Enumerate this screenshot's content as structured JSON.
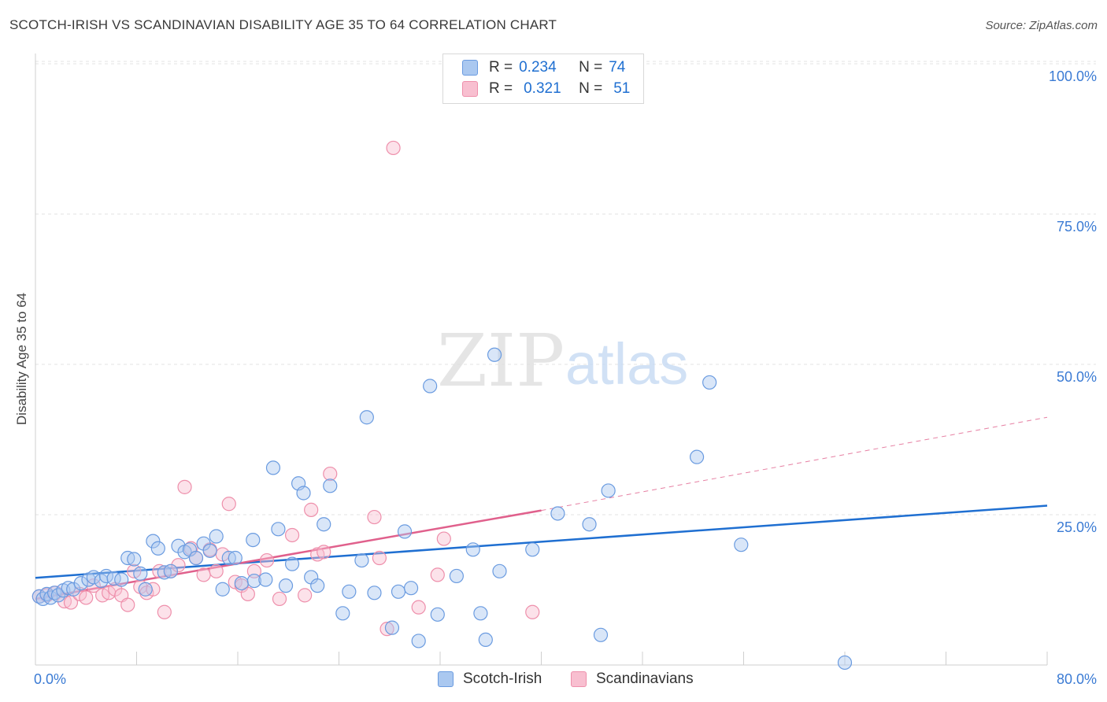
{
  "header": {
    "title": "SCOTCH-IRISH VS SCANDINAVIAN DISABILITY AGE 35 TO 64 CORRELATION CHART",
    "source": "Source: ZipAtlas.com"
  },
  "watermark": {
    "zip": "ZIP",
    "atlas": "atlas"
  },
  "legend": {
    "rows": [
      {
        "r_label": "R =",
        "r_value": "0.234",
        "n_label": "N =",
        "n_value": "74"
      },
      {
        "r_label": "R =",
        "r_value": "0.321",
        "n_label": "N =",
        "n_value": "51"
      }
    ]
  },
  "colors": {
    "blue_fill": "#aac8f0",
    "blue_stroke": "#6a9be0",
    "blue_line": "#1f6fd1",
    "pink_fill": "#f8bfd0",
    "pink_stroke": "#ee8fab",
    "pink_line": "#e0608c",
    "tick_label": "#3b7bd4",
    "grid": "#e3e3e3"
  },
  "chart_data": {
    "type": "scatter",
    "title": "SCOTCH-IRISH VS SCANDINAVIAN DISABILITY AGE 35 TO 64 CORRELATION CHART",
    "xlabel": "",
    "ylabel": "Disability Age 35 to 64",
    "xlim": [
      0,
      80
    ],
    "ylim": [
      0,
      102
    ],
    "x_tick_labels": [
      "0.0%",
      "80.0%"
    ],
    "y_ticks": [
      25,
      50,
      75,
      100
    ],
    "y_tick_labels": [
      "25.0%",
      "50.0%",
      "75.0%",
      "100.0%"
    ],
    "grid": true,
    "legend_position": "top-center",
    "series": [
      {
        "name": "Scotch-Irish",
        "r": 0.234,
        "n": 74,
        "trend": {
          "x": [
            0,
            80
          ],
          "y": [
            14.5,
            26.5
          ]
        },
        "points": [
          [
            0.3,
            11.4
          ],
          [
            0.6,
            11.0
          ],
          [
            0.9,
            11.8
          ],
          [
            1.2,
            11.2
          ],
          [
            1.5,
            12.0
          ],
          [
            1.8,
            11.6
          ],
          [
            2.2,
            12.4
          ],
          [
            2.6,
            12.8
          ],
          [
            3.0,
            12.6
          ],
          [
            3.6,
            13.6
          ],
          [
            4.2,
            14.2
          ],
          [
            4.6,
            14.6
          ],
          [
            5.2,
            14.0
          ],
          [
            5.6,
            14.8
          ],
          [
            6.2,
            14.4
          ],
          [
            6.8,
            14.2
          ],
          [
            7.3,
            17.8
          ],
          [
            7.8,
            17.6
          ],
          [
            8.3,
            15.2
          ],
          [
            8.7,
            12.6
          ],
          [
            9.3,
            20.6
          ],
          [
            9.7,
            19.4
          ],
          [
            10.2,
            15.4
          ],
          [
            10.7,
            15.6
          ],
          [
            11.3,
            19.8
          ],
          [
            11.8,
            18.8
          ],
          [
            12.2,
            19.2
          ],
          [
            12.7,
            17.8
          ],
          [
            13.3,
            20.2
          ],
          [
            13.8,
            19.0
          ],
          [
            14.3,
            21.4
          ],
          [
            14.8,
            12.6
          ],
          [
            15.3,
            17.8
          ],
          [
            15.8,
            17.8
          ],
          [
            16.3,
            13.6
          ],
          [
            17.2,
            20.8
          ],
          [
            17.3,
            14.0
          ],
          [
            18.2,
            14.2
          ],
          [
            18.8,
            32.8
          ],
          [
            19.2,
            22.6
          ],
          [
            19.8,
            13.2
          ],
          [
            20.3,
            16.8
          ],
          [
            20.8,
            30.2
          ],
          [
            21.2,
            28.6
          ],
          [
            21.8,
            14.6
          ],
          [
            22.3,
            13.2
          ],
          [
            22.8,
            23.4
          ],
          [
            23.3,
            29.8
          ],
          [
            24.3,
            8.6
          ],
          [
            24.8,
            12.2
          ],
          [
            25.8,
            17.4
          ],
          [
            26.2,
            41.2
          ],
          [
            26.8,
            12.0
          ],
          [
            28.2,
            6.2
          ],
          [
            28.7,
            12.2
          ],
          [
            29.2,
            22.2
          ],
          [
            29.7,
            12.8
          ],
          [
            30.3,
            4.0
          ],
          [
            31.2,
            46.4
          ],
          [
            31.8,
            8.4
          ],
          [
            33.3,
            14.8
          ],
          [
            34.6,
            19.2
          ],
          [
            35.2,
            8.6
          ],
          [
            35.6,
            4.2
          ],
          [
            36.3,
            51.6
          ],
          [
            36.7,
            15.6
          ],
          [
            39.3,
            19.2
          ],
          [
            41.3,
            25.2
          ],
          [
            43.8,
            23.4
          ],
          [
            44.7,
            5.0
          ],
          [
            45.3,
            29.0
          ],
          [
            52.3,
            34.6
          ],
          [
            53.3,
            47.0
          ],
          [
            55.8,
            20.0
          ],
          [
            64.0,
            0.4
          ]
        ]
      },
      {
        "name": "Scandinavians",
        "r": 0.321,
        "n": 51,
        "trend": {
          "x": [
            0,
            40
          ],
          "y": [
            11.0,
            25.7
          ]
        },
        "trend_extension": {
          "x": [
            40,
            80
          ],
          "y": [
            25.7,
            41.2
          ]
        },
        "points": [
          [
            0.3,
            11.4
          ],
          [
            0.9,
            11.6
          ],
          [
            1.6,
            12.0
          ],
          [
            2.3,
            10.6
          ],
          [
            2.8,
            10.4
          ],
          [
            3.5,
            11.8
          ],
          [
            4.0,
            11.2
          ],
          [
            4.6,
            13.2
          ],
          [
            5.3,
            11.6
          ],
          [
            5.8,
            12.0
          ],
          [
            6.3,
            12.6
          ],
          [
            6.8,
            11.6
          ],
          [
            7.3,
            10.0
          ],
          [
            7.8,
            15.6
          ],
          [
            8.3,
            13.0
          ],
          [
            8.8,
            12.0
          ],
          [
            9.3,
            12.6
          ],
          [
            9.8,
            15.6
          ],
          [
            10.2,
            8.8
          ],
          [
            10.7,
            15.6
          ],
          [
            11.3,
            16.6
          ],
          [
            11.8,
            29.6
          ],
          [
            12.3,
            19.4
          ],
          [
            12.7,
            17.8
          ],
          [
            13.3,
            15.0
          ],
          [
            13.8,
            19.2
          ],
          [
            14.3,
            15.6
          ],
          [
            14.8,
            18.4
          ],
          [
            15.3,
            26.8
          ],
          [
            15.8,
            13.8
          ],
          [
            16.3,
            13.2
          ],
          [
            16.8,
            11.8
          ],
          [
            17.3,
            15.6
          ],
          [
            18.3,
            17.4
          ],
          [
            19.3,
            11.0
          ],
          [
            20.3,
            21.6
          ],
          [
            21.3,
            11.6
          ],
          [
            21.8,
            25.8
          ],
          [
            22.3,
            18.4
          ],
          [
            22.8,
            18.8
          ],
          [
            23.3,
            31.8
          ],
          [
            26.8,
            24.6
          ],
          [
            27.2,
            17.8
          ],
          [
            27.8,
            6.0
          ],
          [
            28.3,
            86.0
          ],
          [
            30.3,
            9.6
          ],
          [
            31.8,
            15.0
          ],
          [
            32.3,
            21.0
          ],
          [
            39.3,
            8.8
          ]
        ]
      }
    ]
  },
  "bottom_legend": {
    "items": [
      "Scotch-Irish",
      "Scandinavians"
    ]
  }
}
